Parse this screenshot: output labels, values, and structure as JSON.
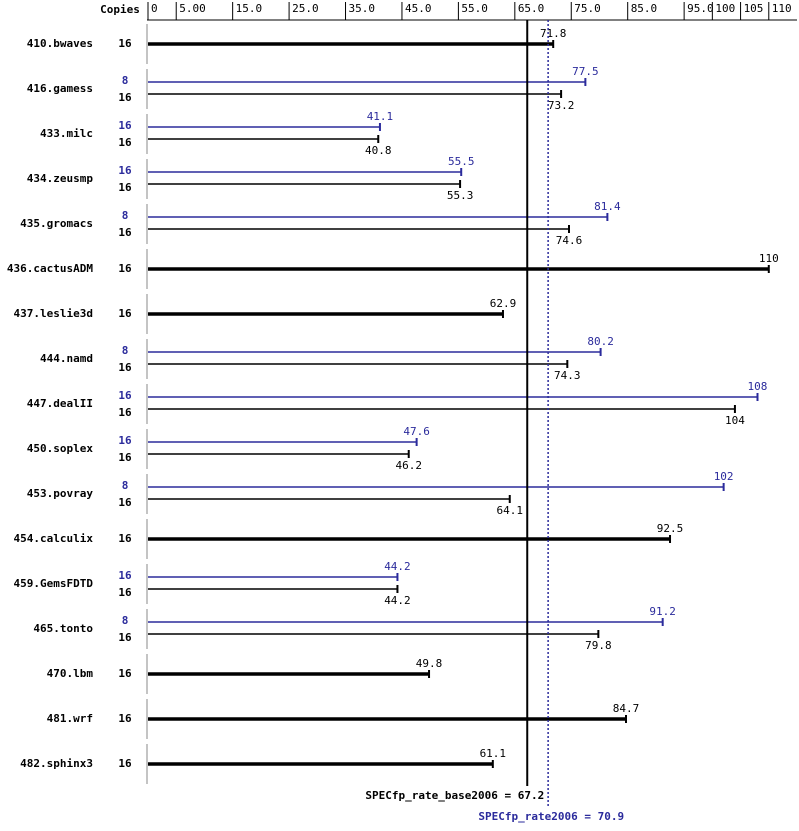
{
  "chart_data": {
    "type": "bar",
    "orientation": "horizontal",
    "copies_header": "Copies",
    "xlim": [
      0,
      115
    ],
    "xticks": [
      0,
      {
        "value": 5,
        "label": "5.00"
      },
      {
        "value": 15,
        "label": "15.0"
      },
      {
        "value": 25,
        "label": "25.0"
      },
      {
        "value": 35,
        "label": "35.0"
      },
      {
        "value": 45,
        "label": "45.0"
      },
      {
        "value": 55,
        "label": "55.0"
      },
      {
        "value": 65,
        "label": "65.0"
      },
      {
        "value": 75,
        "label": "75.0"
      },
      {
        "value": 85,
        "label": "85.0"
      },
      {
        "value": 95,
        "label": "95.0"
      },
      100,
      105,
      110
    ],
    "base_color": "#000000",
    "peak_color": "#2b2b9c",
    "benchmarks": [
      {
        "name": "410.bwaves",
        "base_copies": 16,
        "base": 71.8
      },
      {
        "name": "416.gamess",
        "peak_copies": 8,
        "peak": 77.5,
        "base_copies": 16,
        "base": 73.2
      },
      {
        "name": "433.milc",
        "peak_copies": 16,
        "peak": 41.1,
        "base_copies": 16,
        "base": 40.8
      },
      {
        "name": "434.zeusmp",
        "peak_copies": 16,
        "peak": 55.5,
        "base_copies": 16,
        "base": 55.3
      },
      {
        "name": "435.gromacs",
        "peak_copies": 8,
        "peak": 81.4,
        "base_copies": 16,
        "base": 74.6
      },
      {
        "name": "436.cactusADM",
        "base_copies": 16,
        "base": 110
      },
      {
        "name": "437.leslie3d",
        "base_copies": 16,
        "base": 62.9
      },
      {
        "name": "444.namd",
        "peak_copies": 8,
        "peak": 80.2,
        "base_copies": 16,
        "base": 74.3
      },
      {
        "name": "447.dealII",
        "peak_copies": 16,
        "peak": 108,
        "base_copies": 16,
        "base": 104
      },
      {
        "name": "450.soplex",
        "peak_copies": 16,
        "peak": 47.6,
        "base_copies": 16,
        "base": 46.2
      },
      {
        "name": "453.povray",
        "peak_copies": 8,
        "peak": 102,
        "base_copies": 16,
        "base": 64.1
      },
      {
        "name": "454.calculix",
        "base_copies": 16,
        "base": 92.5
      },
      {
        "name": "459.GemsFDTD",
        "peak_copies": 16,
        "peak": 44.2,
        "base_copies": 16,
        "base": 44.2
      },
      {
        "name": "465.tonto",
        "peak_copies": 8,
        "peak": 91.2,
        "base_copies": 16,
        "base": 79.8
      },
      {
        "name": "470.lbm",
        "base_copies": 16,
        "base": 49.8
      },
      {
        "name": "481.wrf",
        "base_copies": 16,
        "base": 84.7
      },
      {
        "name": "482.sphinx3",
        "base_copies": 16,
        "base": 61.1
      }
    ],
    "base_line": {
      "label": "SPECfp_rate_base2006 = 67.2",
      "value": 67.2
    },
    "peak_line": {
      "label": "SPECfp_rate2006 = 70.9",
      "value": 70.9
    }
  }
}
